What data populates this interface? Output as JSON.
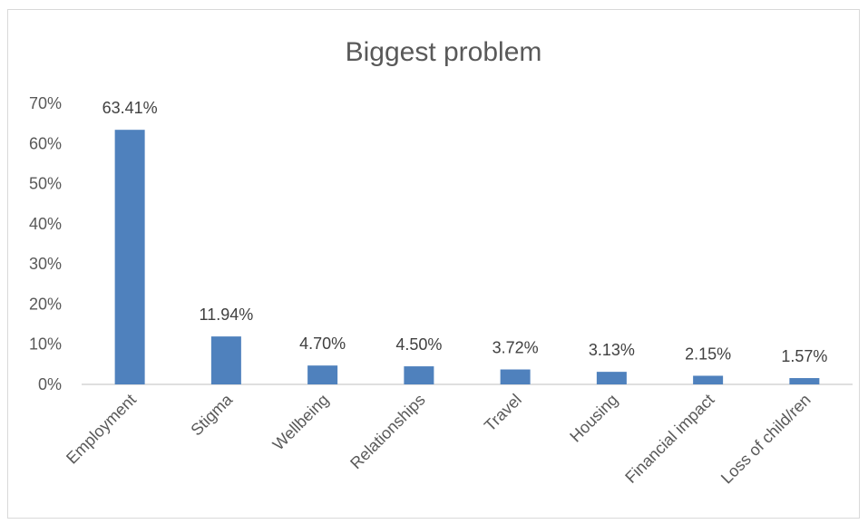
{
  "chart_data": {
    "type": "bar",
    "title": "Biggest problem",
    "xlabel": "",
    "ylabel": "",
    "categories": [
      "Employment",
      "Stigma",
      "Wellbeing",
      "Relationships",
      "Travel",
      "Housing",
      "Financial impact",
      "Loss of child/ren"
    ],
    "values": [
      63.41,
      11.94,
      4.7,
      4.5,
      3.72,
      3.13,
      2.15,
      1.57
    ],
    "data_labels": [
      "63.41%",
      "11.94%",
      "4.70%",
      "4.50%",
      "3.72%",
      "3.13%",
      "2.15%",
      "1.57%"
    ],
    "ylim": [
      0,
      70
    ],
    "y_ticks": [
      0,
      10,
      20,
      30,
      40,
      50,
      60,
      70
    ],
    "y_tick_labels": [
      "0%",
      "10%",
      "20%",
      "30%",
      "40%",
      "50%",
      "60%",
      "70%"
    ],
    "grid": false,
    "bar_color": "#4f81bd"
  }
}
